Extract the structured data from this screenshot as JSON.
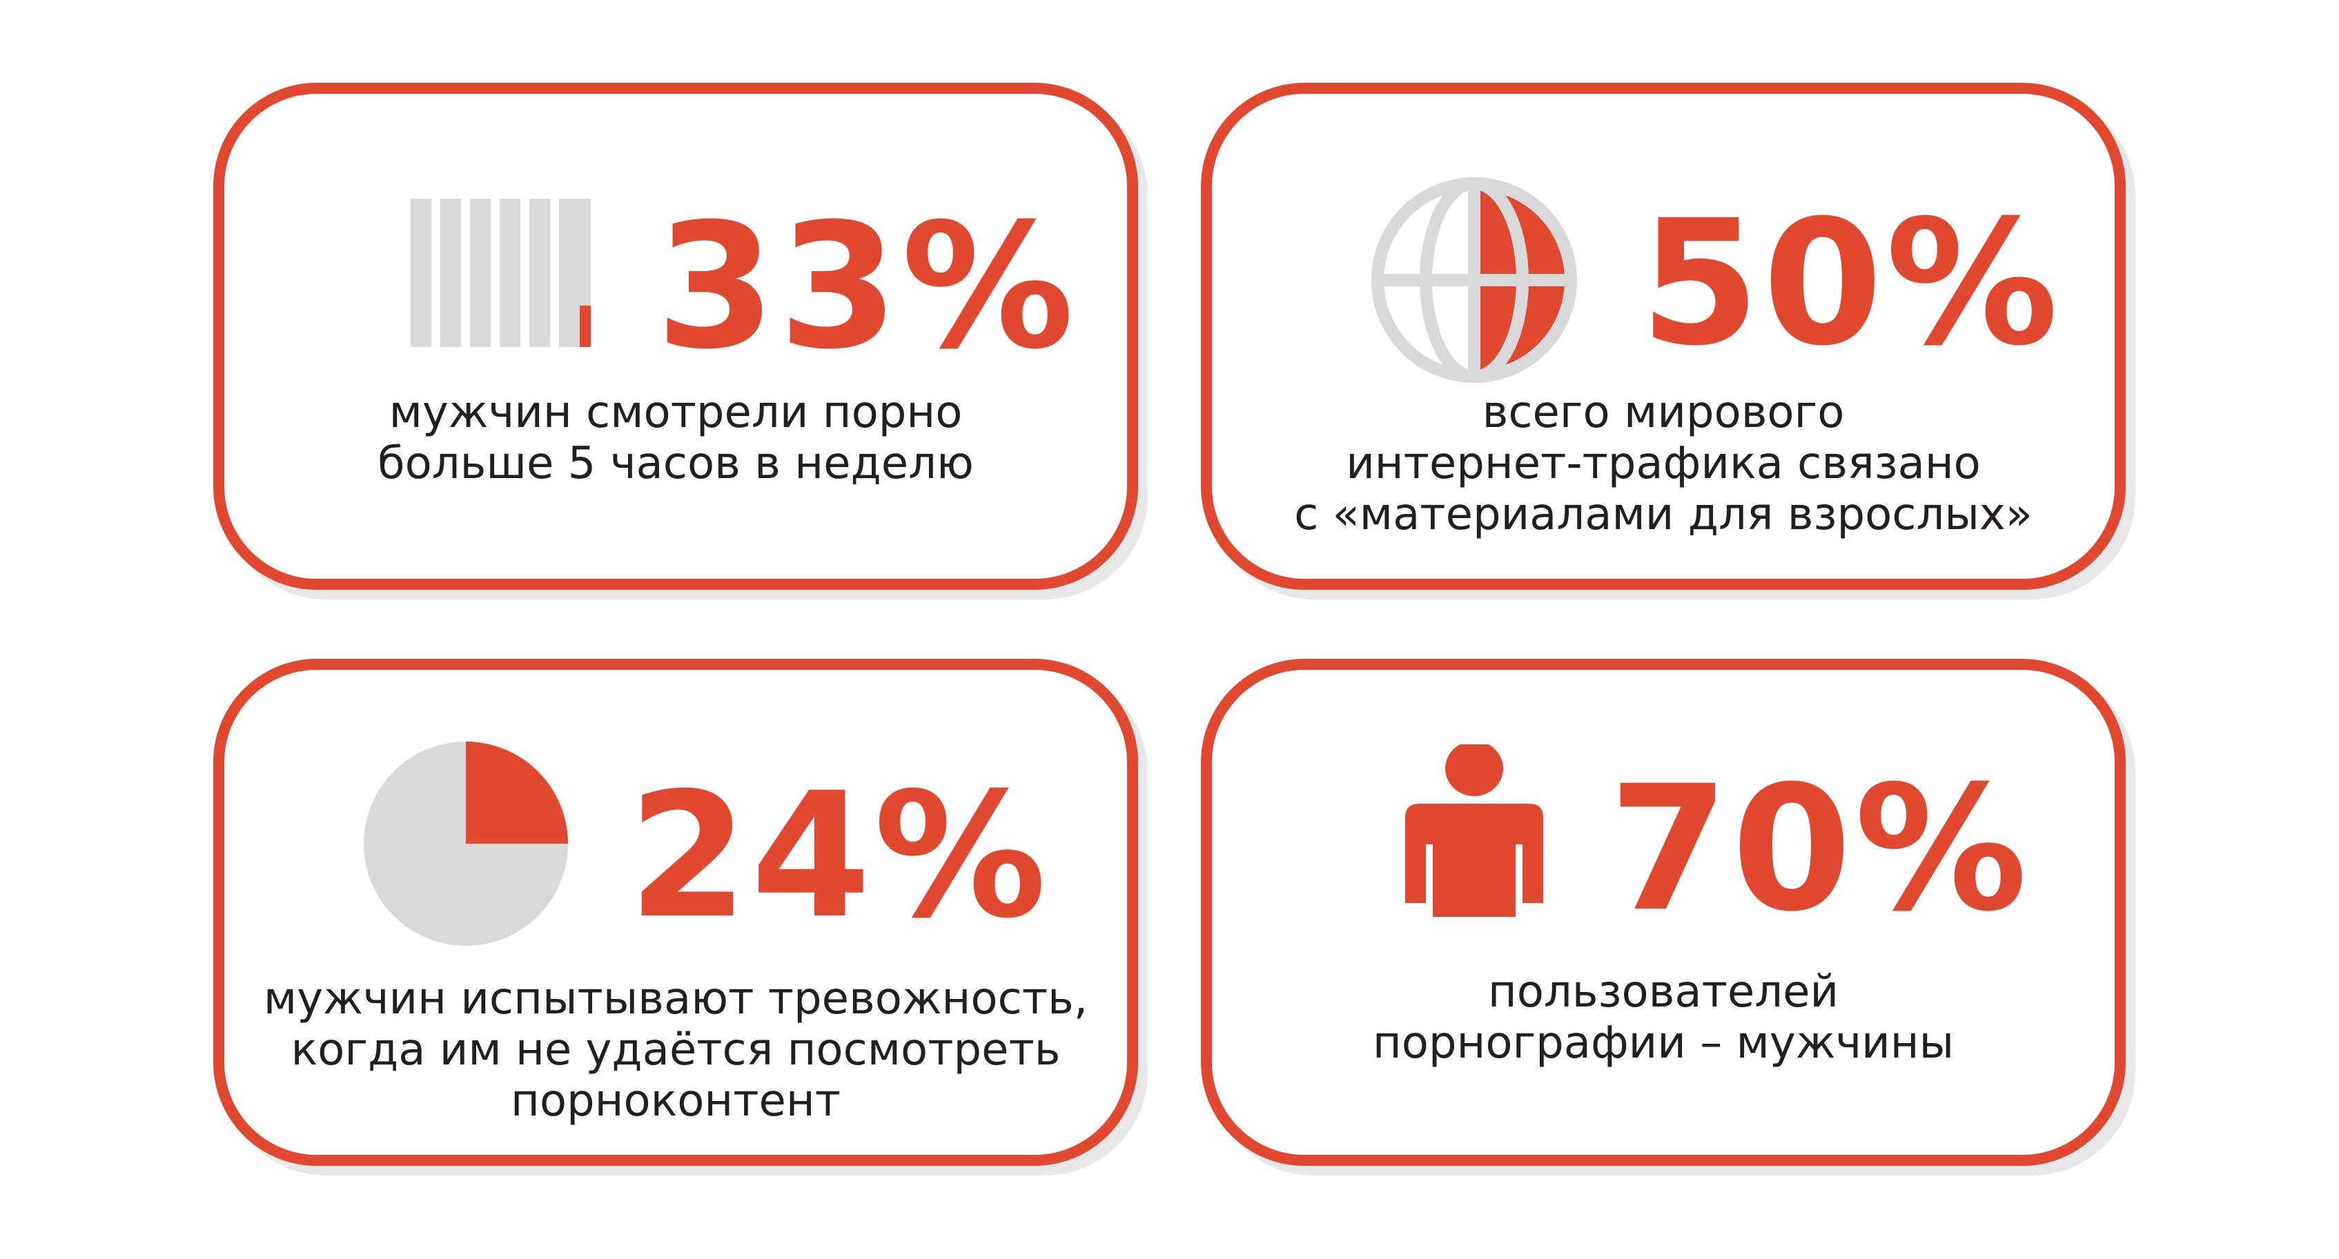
{
  "cards": [
    {
      "value": "33%",
      "icon": "bars-icon",
      "icon_level": 0.33,
      "lines": [
        "мужчин смотрели порно",
        "больше 5 часов в неделю"
      ]
    },
    {
      "value": "50%",
      "icon": "globe-icon",
      "icon_level": 0.5,
      "lines": [
        "всего мирового",
        "интернет-трафика связано",
        "с «материалами для взрослых»"
      ]
    },
    {
      "value": "24%",
      "icon": "pie-icon",
      "icon_level": 0.24,
      "lines": [
        "мужчин испытывают тревожность,",
        "когда им не удаётся посмотреть",
        "порноконтент"
      ]
    },
    {
      "value": "70%",
      "icon": "person-icon",
      "icon_level": 0.7,
      "lines": [
        "пользователей",
        "порнографии – мужчины"
      ]
    }
  ],
  "colors": {
    "accent": "#e0492f",
    "muted": "#d9d9d9",
    "text": "#231f20",
    "shadow": "#e8e8e8"
  }
}
